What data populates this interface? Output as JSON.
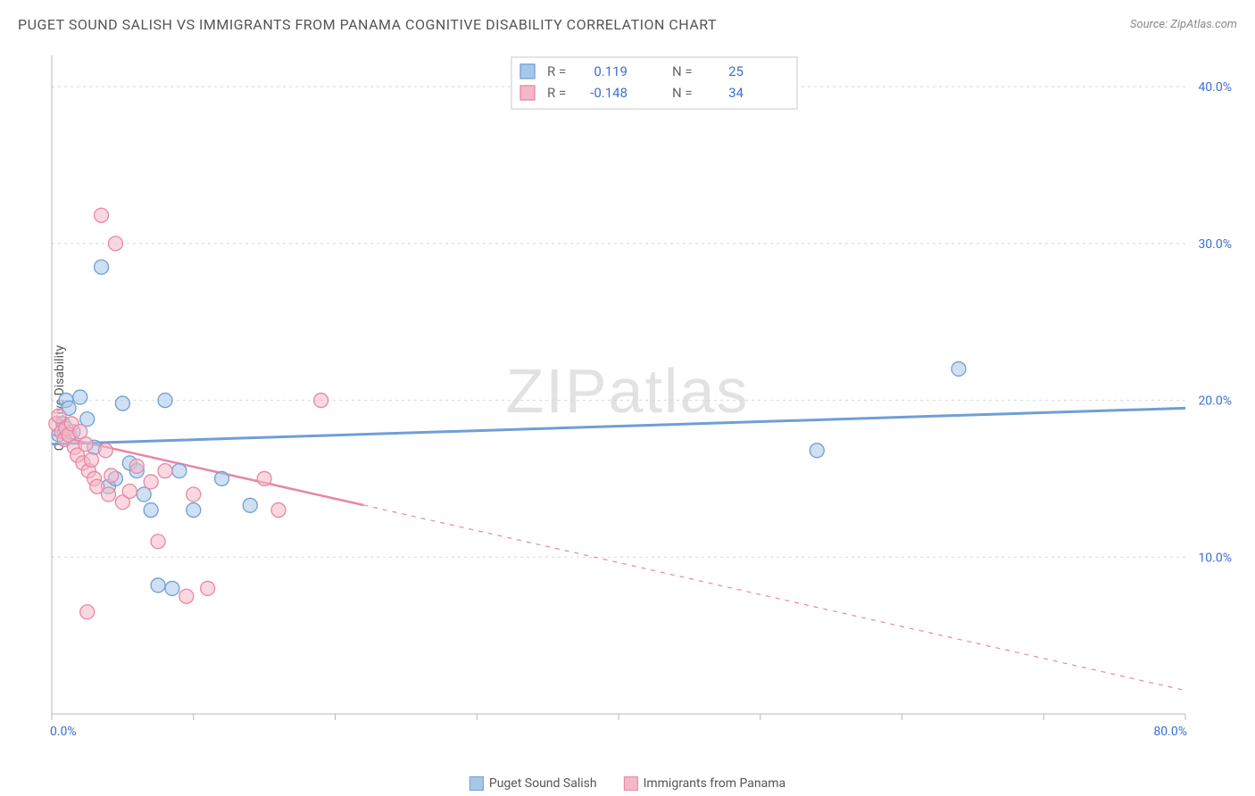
{
  "title": "PUGET SOUND SALISH VS IMMIGRANTS FROM PANAMA COGNITIVE DISABILITY CORRELATION CHART",
  "source": "Source: ZipAtlas.com",
  "ylabel": "Cognitive Disability",
  "watermark": {
    "bold": "ZIP",
    "light": "atlas"
  },
  "chart": {
    "type": "scatter",
    "background_color": "#ffffff",
    "grid_color": "#d8d8d8",
    "axis_color": "#b8b8b8",
    "xlim": [
      0,
      80
    ],
    "ylim": [
      0,
      42
    ],
    "xticks": [
      0,
      10,
      20,
      30,
      40,
      50,
      60,
      70,
      80
    ],
    "xtick_labels": [
      "0.0%",
      "",
      "",
      "",
      "",
      "",
      "",
      "",
      "80.0%"
    ],
    "yticks": [
      10,
      20,
      30,
      40
    ],
    "ytick_labels": [
      "10.0%",
      "20.0%",
      "30.0%",
      "40.0%"
    ],
    "tick_label_color": "#3b6fd4",
    "tick_label_fontsize": 14,
    "marker_radius": 8,
    "marker_opacity": 0.55,
    "series": [
      {
        "name": "Puget Sound Salish",
        "color_fill": "#a7c7ea",
        "color_stroke": "#6f9fd6",
        "R": "0.119",
        "N": "25",
        "points": [
          [
            0.5,
            17.8
          ],
          [
            0.8,
            18.5
          ],
          [
            1.0,
            20.0
          ],
          [
            1.2,
            19.5
          ],
          [
            1.5,
            18.0
          ],
          [
            2.0,
            20.2
          ],
          [
            2.5,
            18.8
          ],
          [
            3.0,
            17.0
          ],
          [
            3.5,
            28.5
          ],
          [
            4.0,
            14.5
          ],
          [
            4.5,
            15.0
          ],
          [
            5.0,
            19.8
          ],
          [
            5.5,
            16.0
          ],
          [
            6.0,
            15.5
          ],
          [
            6.5,
            14.0
          ],
          [
            7.0,
            13.0
          ],
          [
            7.5,
            8.2
          ],
          [
            8.0,
            20.0
          ],
          [
            8.5,
            8.0
          ],
          [
            9.0,
            15.5
          ],
          [
            10.0,
            13.0
          ],
          [
            12.0,
            15.0
          ],
          [
            14.0,
            13.3
          ],
          [
            54.0,
            16.8
          ],
          [
            64.0,
            22.0
          ]
        ],
        "trend": {
          "y_start": 17.2,
          "y_end": 19.5,
          "x_start": 0,
          "x_end": 80,
          "solid_until": 80,
          "stroke_width": 3
        }
      },
      {
        "name": "Immigrants from Panama",
        "color_fill": "#f4b8c7",
        "color_stroke": "#e887a3",
        "R": "-0.148",
        "N": "34",
        "points": [
          [
            0.3,
            18.5
          ],
          [
            0.5,
            19.0
          ],
          [
            0.7,
            18.0
          ],
          [
            0.9,
            17.5
          ],
          [
            1.0,
            18.2
          ],
          [
            1.2,
            17.8
          ],
          [
            1.4,
            18.5
          ],
          [
            1.6,
            17.0
          ],
          [
            1.8,
            16.5
          ],
          [
            2.0,
            18.0
          ],
          [
            2.2,
            16.0
          ],
          [
            2.4,
            17.2
          ],
          [
            2.6,
            15.5
          ],
          [
            2.8,
            16.2
          ],
          [
            3.0,
            15.0
          ],
          [
            3.2,
            14.5
          ],
          [
            3.5,
            31.8
          ],
          [
            3.8,
            16.8
          ],
          [
            4.0,
            14.0
          ],
          [
            4.2,
            15.2
          ],
          [
            4.5,
            30.0
          ],
          [
            5.0,
            13.5
          ],
          [
            5.5,
            14.2
          ],
          [
            6.0,
            15.8
          ],
          [
            7.0,
            14.8
          ],
          [
            7.5,
            11.0
          ],
          [
            8.0,
            15.5
          ],
          [
            2.5,
            6.5
          ],
          [
            9.5,
            7.5
          ],
          [
            10.0,
            14.0
          ],
          [
            11.0,
            8.0
          ],
          [
            15.0,
            15.0
          ],
          [
            16.0,
            13.0
          ],
          [
            19.0,
            20.0
          ]
        ],
        "trend": {
          "y_start": 17.8,
          "y_end": 1.5,
          "x_start": 0,
          "x_end": 80,
          "solid_until": 22,
          "stroke_width": 2.5
        }
      }
    ],
    "stats_box": {
      "border_color": "#c8c8c8",
      "bg_color": "#ffffff",
      "label_color": "#666666",
      "value_color": "#3b6fd4",
      "rows": [
        {
          "swatch": 0,
          "R_label": "R =",
          "R_val": "0.119",
          "N_label": "N =",
          "N_val": "25"
        },
        {
          "swatch": 1,
          "R_label": "R =",
          "R_val": "-0.148",
          "N_label": "N =",
          "N_val": "34"
        }
      ]
    }
  },
  "legend_bottom": [
    {
      "series": 0,
      "label": "Puget Sound Salish"
    },
    {
      "series": 1,
      "label": "Immigrants from Panama"
    }
  ]
}
